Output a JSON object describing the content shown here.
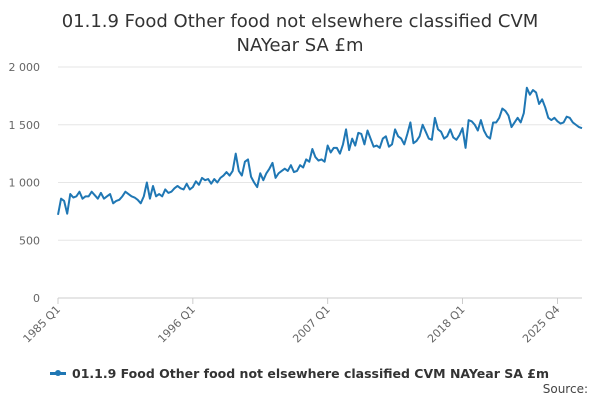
{
  "chart_data": {
    "type": "line",
    "title": "01.1.9 Food Other food not elsewhere classified CVM NAYear SA £m",
    "xlabel": "",
    "ylabel": "",
    "ylim": [
      0,
      2000
    ],
    "yticks": [
      0,
      500,
      1000,
      1500,
      2000
    ],
    "ytick_labels": [
      "0",
      "500",
      "1 000",
      "1 500",
      "2 000"
    ],
    "xtick_labels": [
      "1985 Q1",
      "1996 Q1",
      "2007 Q1",
      "2018 Q1",
      "2025 Q4"
    ],
    "xtick_index": [
      0,
      44,
      88,
      132,
      163
    ],
    "grid": true,
    "legend": "bottom-left",
    "color": "#1f77b4",
    "series": [
      {
        "name": "01.1.9 Food Other food not elsewhere classified CVM NAYear SA £m",
        "values": [
          720,
          860,
          840,
          730,
          900,
          870,
          880,
          920,
          860,
          880,
          880,
          920,
          890,
          860,
          910,
          860,
          880,
          900,
          820,
          840,
          850,
          880,
          920,
          900,
          880,
          870,
          850,
          820,
          880,
          1000,
          860,
          970,
          880,
          900,
          880,
          940,
          910,
          920,
          950,
          970,
          950,
          940,
          990,
          940,
          960,
          1010,
          980,
          1040,
          1020,
          1030,
          990,
          1030,
          1000,
          1040,
          1060,
          1090,
          1060,
          1100,
          1250,
          1100,
          1060,
          1180,
          1200,
          1050,
          1000,
          960,
          1080,
          1020,
          1080,
          1120,
          1170,
          1040,
          1080,
          1100,
          1120,
          1100,
          1150,
          1090,
          1100,
          1150,
          1130,
          1200,
          1180,
          1290,
          1220,
          1190,
          1200,
          1180,
          1320,
          1260,
          1300,
          1300,
          1250,
          1330,
          1460,
          1280,
          1380,
          1320,
          1430,
          1420,
          1330,
          1450,
          1380,
          1310,
          1320,
          1300,
          1380,
          1400,
          1310,
          1330,
          1460,
          1400,
          1380,
          1330,
          1420,
          1520,
          1340,
          1360,
          1400,
          1500,
          1440,
          1380,
          1370,
          1560,
          1460,
          1440,
          1380,
          1400,
          1460,
          1390,
          1370,
          1410,
          1470,
          1300,
          1540,
          1530,
          1500,
          1450,
          1540,
          1450,
          1400,
          1380,
          1520,
          1520,
          1560,
          1640,
          1620,
          1580,
          1480,
          1520,
          1560,
          1520,
          1600,
          1820,
          1760,
          1800,
          1780,
          1680,
          1720,
          1650,
          1560,
          1540,
          1560,
          1530,
          1510,
          1520,
          1570,
          1560,
          1520,
          1500,
          1480,
          1470
        ]
      }
    ]
  },
  "legend": {
    "label": "01.1.9 Food Other food not elsewhere classified CVM NAYear SA £m"
  },
  "footer": {
    "source_label": "Source:"
  }
}
